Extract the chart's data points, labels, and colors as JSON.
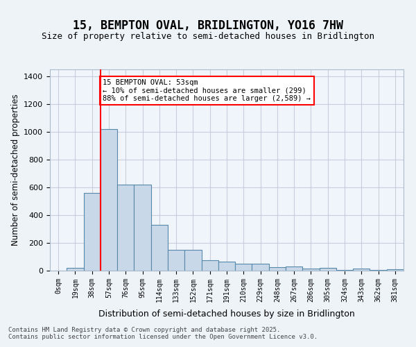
{
  "title": "15, BEMPTON OVAL, BRIDLINGTON, YO16 7HW",
  "subtitle": "Size of property relative to semi-detached houses in Bridlington",
  "xlabel": "Distribution of semi-detached houses by size in Bridlington",
  "ylabel": "Number of semi-detached properties",
  "bar_labels": [
    "0sqm",
    "19sqm",
    "38sqm",
    "57sqm",
    "76sqm",
    "95sqm",
    "114sqm",
    "133sqm",
    "152sqm",
    "171sqm",
    "191sqm",
    "210sqm",
    "229sqm",
    "248sqm",
    "267sqm",
    "286sqm",
    "305sqm",
    "324sqm",
    "343sqm",
    "362sqm",
    "381sqm"
  ],
  "bar_values": [
    0,
    20,
    560,
    1020,
    620,
    620,
    330,
    150,
    150,
    75,
    65,
    50,
    50,
    25,
    30,
    15,
    20,
    5,
    15,
    5,
    10
  ],
  "bar_color": "#c8d8e8",
  "bar_edge_color": "#5588aa",
  "vline_x": 2,
  "vline_color": "red",
  "annotation_text": "15 BEMPTON OVAL: 53sqm\n← 10% of semi-detached houses are smaller (299)\n88% of semi-detached houses are larger (2,589) →",
  "annotation_box_color": "white",
  "annotation_box_edgecolor": "red",
  "ylim": [
    0,
    1450
  ],
  "yticks": [
    0,
    200,
    400,
    600,
    800,
    1000,
    1200,
    1400
  ],
  "footer": "Contains HM Land Registry data © Crown copyright and database right 2025.\nContains public sector information licensed under the Open Government Licence v3.0.",
  "bg_color": "#eef3f8",
  "plot_bg_color": "#f0f5fb",
  "grid_color": "#ccccdd"
}
